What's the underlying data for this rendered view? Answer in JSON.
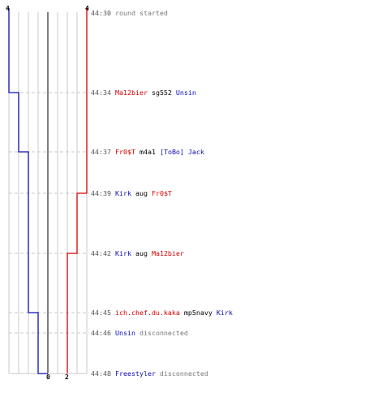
{
  "teams": {
    "blue": {
      "color": "#0c0cb4",
      "start_count": "4",
      "end_count": "0"
    },
    "red": {
      "color": "#d40000",
      "start_count": "4",
      "end_count": "2"
    }
  },
  "colors": {
    "grid": "#c8c8c8",
    "center_line": "#555555",
    "dash": "#c8c8c8"
  },
  "events": [
    {
      "time": "44:30",
      "parts": [
        {
          "text": "round started",
          "kind": "msg"
        }
      ]
    },
    {
      "time": "44:34",
      "parts": [
        {
          "text": "Ma12bier",
          "kind": "red"
        },
        {
          "text": " sg552 ",
          "kind": "weapon"
        },
        {
          "text": "Unsin",
          "kind": "blue"
        }
      ]
    },
    {
      "time": "44:37",
      "parts": [
        {
          "text": "Fr0$T",
          "kind": "red"
        },
        {
          "text": " m4a1 ",
          "kind": "weapon"
        },
        {
          "text": "[ToBo] Jack",
          "kind": "blue"
        }
      ]
    },
    {
      "time": "44:39",
      "parts": [
        {
          "text": "Kirk",
          "kind": "blue"
        },
        {
          "text": " aug ",
          "kind": "weapon"
        },
        {
          "text": "Fr0$T",
          "kind": "red"
        }
      ]
    },
    {
      "time": "44:42",
      "parts": [
        {
          "text": "Kirk",
          "kind": "blue"
        },
        {
          "text": " aug ",
          "kind": "weapon"
        },
        {
          "text": "Ma12bier",
          "kind": "red"
        }
      ]
    },
    {
      "time": "44:45",
      "parts": [
        {
          "text": "ich.chef.du.kaka",
          "kind": "red"
        },
        {
          "text": " mp5navy ",
          "kind": "weapon"
        },
        {
          "text": "Kirk",
          "kind": "blue"
        }
      ]
    },
    {
      "time": "44:46",
      "parts": [
        {
          "text": "Unsin",
          "kind": "blue"
        },
        {
          "text": " disconnected",
          "kind": "msg"
        }
      ]
    },
    {
      "time": "44:48",
      "parts": [
        {
          "text": "Freestyler",
          "kind": "blue"
        },
        {
          "text": " disconnected",
          "kind": "msg"
        }
      ]
    }
  ]
}
